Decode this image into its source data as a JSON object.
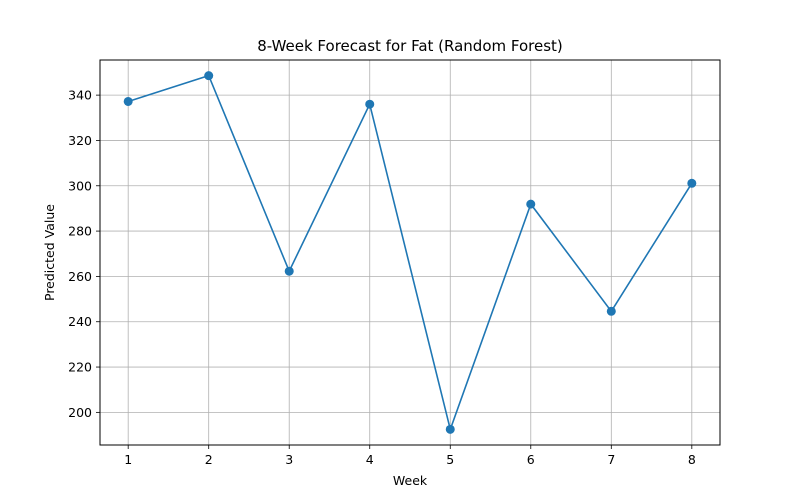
{
  "chart_data": {
    "type": "line",
    "title": "8-Week Forecast for Fat (Random Forest)",
    "xlabel": "Week",
    "ylabel": "Predicted Value",
    "x": [
      1,
      2,
      3,
      4,
      5,
      6,
      7,
      8
    ],
    "series": [
      {
        "values": [
          337.2,
          348.6,
          262.3,
          336.0,
          192.5,
          291.9,
          244.6,
          301.1
        ],
        "color": "#1f77b4"
      }
    ],
    "xticks": [
      "1",
      "2",
      "3",
      "4",
      "5",
      "6",
      "7",
      "8"
    ],
    "yticks": [
      "200",
      "220",
      "240",
      "260",
      "280",
      "300",
      "320",
      "340"
    ],
    "xlim": [
      0.65,
      8.35
    ],
    "ylim": [
      185.6,
      355.5
    ],
    "grid": true,
    "marker": "circle"
  }
}
